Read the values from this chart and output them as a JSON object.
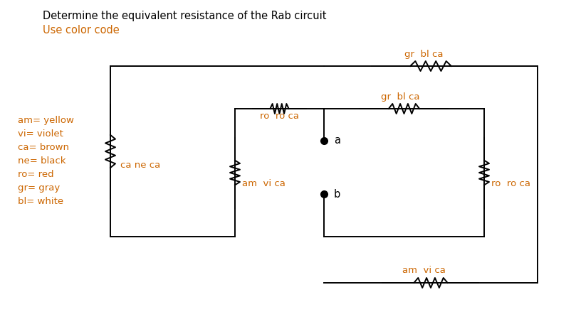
{
  "title": "Determine the equivalent resistance of the Rab circuit",
  "subtitle": "Use color code",
  "title_color": "#000000",
  "subtitle_color": "#cc6600",
  "legend_items": [
    "am= yellow",
    "vi= violet",
    "ca= brown",
    "ne= black",
    "ro= red",
    "gr= gray",
    "bl= white"
  ],
  "resistor_labels": {
    "top": "gr  bl ca",
    "mid_top": "gr  bl ca",
    "mid_h": "ro  ro ca",
    "left_v": "ca ne ca",
    "mid_v": "am  vi ca",
    "right_v": "ro  ro ca",
    "bottom": "am  vi ca"
  },
  "node_a": "a",
  "node_b": "b",
  "line_color": "#000000",
  "bg_color": "#ffffff",
  "orange": "#cc6600"
}
